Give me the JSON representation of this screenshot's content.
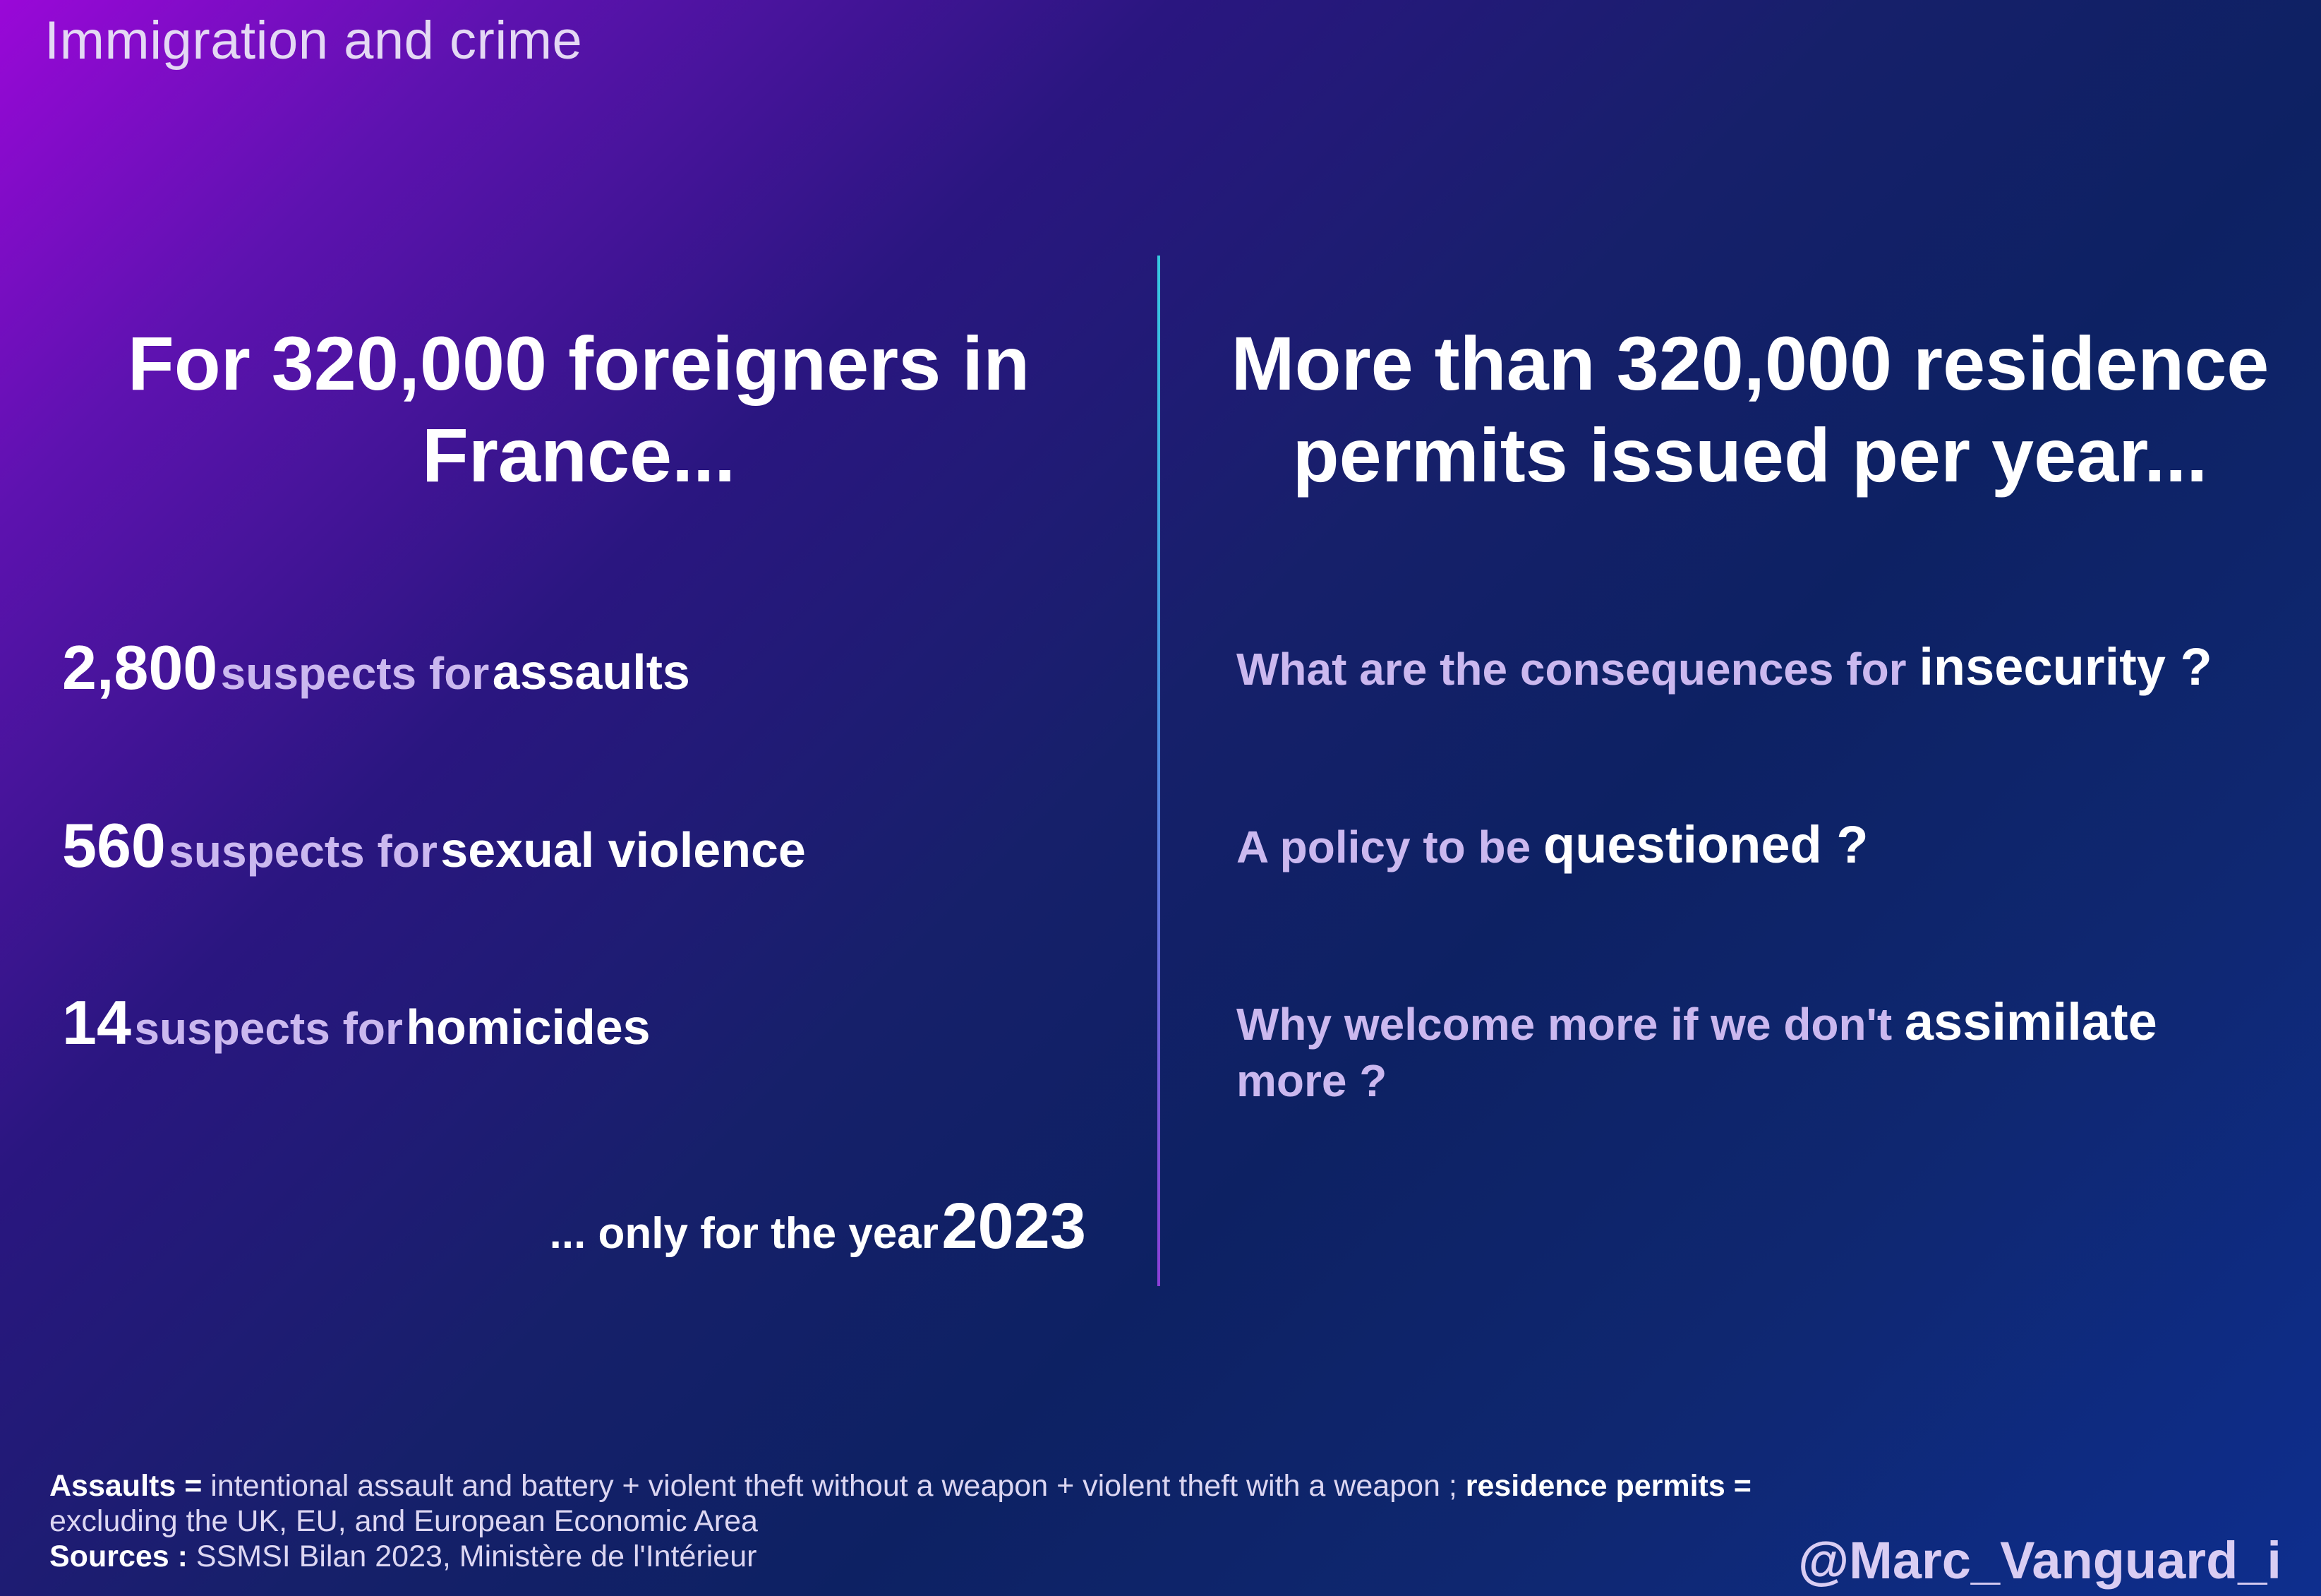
{
  "title": "Immigration and crime",
  "left": {
    "headline": "For 320,000 foreigners in France...",
    "stats": [
      {
        "number": "2,800",
        "middle": "suspects for",
        "crime": "assaults"
      },
      {
        "number": "560",
        "middle": "suspects for",
        "crime": "sexual violence"
      },
      {
        "number": "14",
        "middle": "suspects for",
        "crime": "homicides"
      }
    ],
    "year_note": {
      "prefix": "... only for the year",
      "year": "2023"
    }
  },
  "right": {
    "headline": "More than 320,000 residence permits issued per year...",
    "questions": [
      {
        "text": "What are the consequences for",
        "highlight": "insecurity",
        "suffix": " ?"
      },
      {
        "text": "A policy to be",
        "highlight": "questioned",
        "suffix": " ?"
      },
      {
        "text": "Why welcome more if we don't",
        "highlight": "assimilate",
        "suffix": " more ?"
      }
    ]
  },
  "footer": {
    "assaults_label": "Assaults =",
    "assaults_def": " intentional assault and battery + violent theft without a weapon + violent theft with a weapon ; ",
    "permits_label": "residence permits =",
    "permits_def": " excluding the UK, EU, and European Economic Area",
    "sources_label": "Sources :",
    "sources": " SSMSI Bilan 2023, Ministère de l'Intérieur"
  },
  "handle": "@Marc_Vanguard_i",
  "colors": {
    "accent_light": "#cbb8ef",
    "divider_top": "#36c8e0",
    "divider_bottom": "#8c3fd8"
  }
}
